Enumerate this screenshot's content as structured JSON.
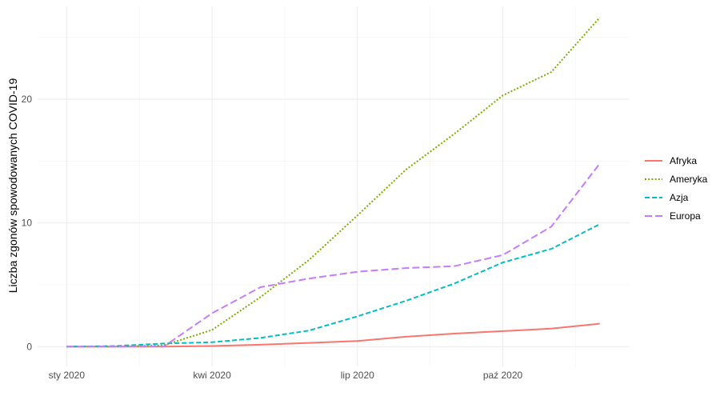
{
  "chart_data": {
    "type": "line",
    "title": "",
    "xlabel": "",
    "ylabel": "Liczba zgonów spowodowanych COVID-19",
    "x_ticks": [
      {
        "label": "sty 2020",
        "value": 0
      },
      {
        "label": "kwi 2020",
        "value": 3
      },
      {
        "label": "lip 2020",
        "value": 6
      },
      {
        "label": "paź 2020",
        "value": 9
      }
    ],
    "xlim": [
      -0.6,
      11.6
    ],
    "y_ticks": [
      0,
      10,
      20
    ],
    "ylim": [
      -1.6,
      27.5
    ],
    "grid": true,
    "legend_position": "right",
    "x": [
      0,
      1,
      2,
      3,
      4,
      5,
      6,
      7,
      8,
      9,
      10,
      11
    ],
    "series": [
      {
        "name": "Afryka",
        "color": "#F8766D",
        "dash": "solid",
        "values": [
          0,
          0,
          0,
          0.05,
          0.15,
          0.3,
          0.45,
          0.8,
          1.05,
          1.25,
          1.45,
          1.85
        ]
      },
      {
        "name": "Ameryka",
        "color": "#7CAE00",
        "dash": "dotted",
        "values": [
          0,
          0,
          0.1,
          1.35,
          4.0,
          7.0,
          10.6,
          14.3,
          17.2,
          20.3,
          22.2,
          26.6
        ]
      },
      {
        "name": "Azja",
        "color": "#00BFC4",
        "dash": "dashed",
        "values": [
          0,
          0.05,
          0.25,
          0.35,
          0.7,
          1.3,
          2.45,
          3.7,
          5.1,
          6.8,
          7.9,
          9.9
        ]
      },
      {
        "name": "Europa",
        "color": "#C77CFF",
        "dash": "longdash",
        "values": [
          0,
          0,
          0,
          2.7,
          4.8,
          5.5,
          6.05,
          6.35,
          6.5,
          7.4,
          9.7,
          14.8
        ]
      }
    ]
  }
}
